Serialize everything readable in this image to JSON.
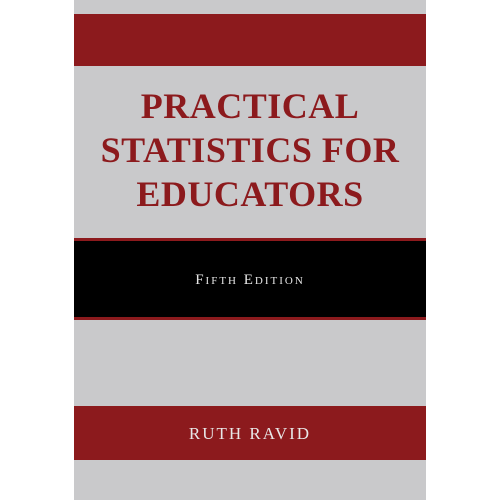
{
  "cover": {
    "title_line1": "PRACTICAL",
    "title_line2": "STATISTICS FOR",
    "title_line3": "EDUCATORS",
    "edition": "Fifth Edition",
    "author": "RUTH RAVID",
    "colors": {
      "background": "#c9c9cb",
      "accent_red": "#8c1a1d",
      "band_black": "#000000",
      "light_text": "#e8e8e8"
    }
  }
}
